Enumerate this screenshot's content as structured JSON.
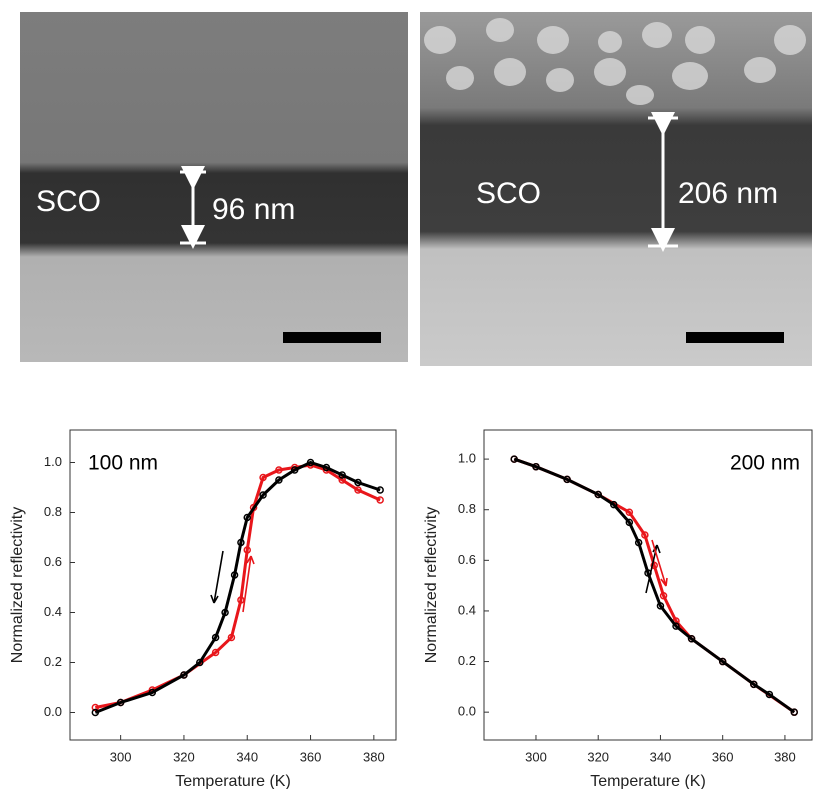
{
  "images": [
    {
      "label": "SCO",
      "thickness": "96 nm"
    },
    {
      "label": "SCO",
      "thickness": "206 nm"
    }
  ],
  "chart_data": [
    {
      "type": "line",
      "annotation": "100 nm",
      "xlabel": "Temperature (K)",
      "ylabel": "Normalized reflectivity",
      "xlim": [
        284,
        387
      ],
      "ylim": [
        -0.11,
        1.13
      ],
      "xticks": [
        300,
        320,
        340,
        360,
        380
      ],
      "yticks": [
        {
          "value": 0,
          "label": "0.0"
        },
        0.2,
        0.4,
        0.6,
        0.8,
        {
          "value": 1,
          "label": "1.0"
        }
      ],
      "series": [
        {
          "color": "#e8161b",
          "x": [
            292,
            300,
            310,
            320,
            330,
            335,
            338,
            340,
            342,
            345,
            350,
            355,
            360,
            365,
            370,
            375,
            382
          ],
          "values": [
            0.02,
            0.04,
            0.09,
            0.15,
            0.24,
            0.3,
            0.45,
            0.65,
            0.82,
            0.94,
            0.97,
            0.98,
            0.99,
            0.97,
            0.93,
            0.89,
            0.85
          ]
        },
        {
          "color": "#000000",
          "x": [
            292,
            300,
            310,
            320,
            325,
            330,
            333,
            336,
            338,
            340,
            345,
            350,
            355,
            360,
            365,
            370,
            375,
            382
          ],
          "values": [
            0.0,
            0.04,
            0.08,
            0.15,
            0.2,
            0.3,
            0.4,
            0.55,
            0.68,
            0.78,
            0.87,
            0.93,
            0.97,
            1.0,
            0.98,
            0.95,
            0.92,
            0.89
          ]
        }
      ]
    },
    {
      "type": "line",
      "annotation": "200 nm",
      "xlabel": "Temperature (K)",
      "ylabel": "Normalized reflectivity",
      "xlim": [
        283.3,
        388.7
      ],
      "ylim": [
        -0.11,
        1.115
      ],
      "xticks": [
        300,
        320,
        340,
        360,
        380
      ],
      "yticks": [
        {
          "value": 0,
          "label": "0.0"
        },
        0.2,
        0.4,
        0.6,
        0.8,
        {
          "value": 1,
          "label": "1.0"
        }
      ],
      "series": [
        {
          "color": "#e8161b",
          "x": [
            293,
            300,
            310,
            320,
            330,
            335,
            338,
            341,
            345,
            350,
            360,
            370,
            383
          ],
          "values": [
            1.0,
            0.97,
            0.92,
            0.86,
            0.79,
            0.7,
            0.58,
            0.46,
            0.36,
            0.29,
            0.2,
            0.11,
            0.0
          ]
        },
        {
          "color": "#000000",
          "x": [
            293,
            300,
            310,
            320,
            325,
            330,
            333,
            336,
            340,
            345,
            350,
            360,
            370,
            375,
            383
          ],
          "values": [
            1.0,
            0.97,
            0.92,
            0.86,
            0.82,
            0.75,
            0.67,
            0.55,
            0.42,
            0.34,
            0.29,
            0.2,
            0.11,
            0.07,
            0.0
          ]
        }
      ]
    }
  ]
}
